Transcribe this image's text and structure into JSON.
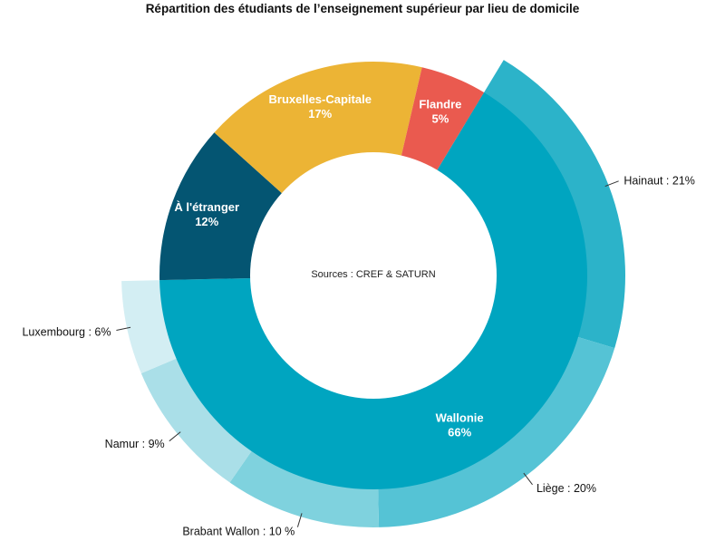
{
  "chart_data": {
    "type": "donut",
    "title": "Répartition des étudiants de l’enseignement supérieur par lieu de domicile",
    "center_note": "Sources : CREF & SATURN",
    "inner_ring": [
      {
        "name": "Wallonie",
        "pct_label": "66%",
        "value": 66,
        "color": "#00a5c0"
      },
      {
        "name": "À l'étranger",
        "pct_label": "12%",
        "value": 12,
        "color": "#045572"
      },
      {
        "name": "Bruxelles-Capitale",
        "pct_label": "17%",
        "value": 17,
        "color": "#ecb435"
      },
      {
        "name": "Flandre",
        "pct_label": "5%",
        "value": 5,
        "color": "#ea5a4f"
      }
    ],
    "outer_ring": [
      {
        "label": "Hainaut : 21%",
        "value": 21,
        "color": "#2cb3c9"
      },
      {
        "label": "Liège : 20%",
        "value": 20,
        "color": "#55c3d5"
      },
      {
        "label": "Brabant Wallon : 10 %",
        "value": 10,
        "color": "#7fd2de"
      },
      {
        "label": "Namur : 9%",
        "value": 9,
        "color": "#aadfe8"
      },
      {
        "label": "Luxembourg : 6%",
        "value": 6,
        "color": "#d3eef3"
      }
    ]
  }
}
